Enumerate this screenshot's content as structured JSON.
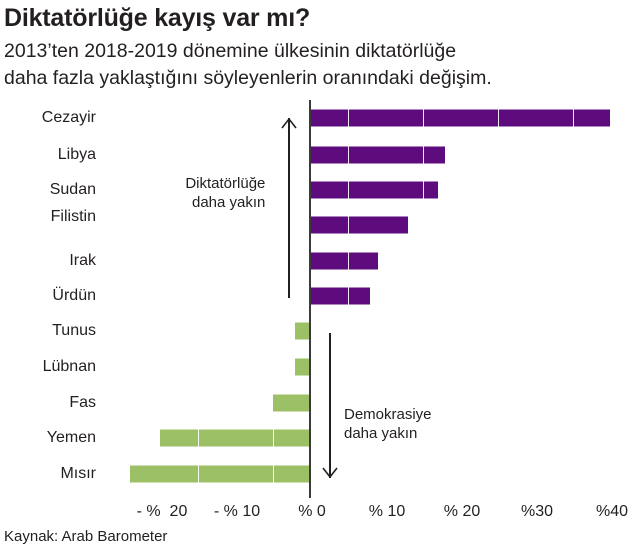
{
  "header": {
    "title": "Diktatörlüğe kayış var mı?",
    "subtitle_line1": "2013’ten 2018-2019 dönemine ülkesinin diktatörlüğe",
    "subtitle_line2": "daha fazla yaklaştığını söyleyenlerin oranındaki değişim."
  },
  "annotations": {
    "up_line1": "Diktatörlüğe",
    "up_line2": "daha yakın",
    "down_line1": "Demokrasiye",
    "down_line2": "daha yakın"
  },
  "footer": {
    "source": "Kaynak: Arab Barometer"
  },
  "colors": {
    "positive": "#5e0b7e",
    "negative": "#9cc066",
    "axis": "#3a3a3a",
    "text": "#231f20"
  },
  "chart_data": {
    "type": "bar",
    "orientation": "horizontal",
    "title": "Diktatörlüğe kayış var mı?",
    "subtitle": "2013’ten 2018-2019 dönemine ülkesinin diktatörlüğe daha fazla yaklaştığını söyleyenlerin oranındaki değişim.",
    "xlabel": "",
    "ylabel": "",
    "xlim": [
      -25,
      40
    ],
    "unit": "%",
    "grid": false,
    "legend": null,
    "categories": [
      "Cezayir",
      "Libya",
      "Sudan",
      "Filistin",
      "Irak",
      "Ürdün",
      "Tunus",
      "Lübnan",
      "Fas",
      "Yemen",
      "Mısır"
    ],
    "values": [
      40,
      18,
      17,
      13,
      9,
      8,
      -2,
      -2,
      -5,
      -20,
      -24
    ],
    "tick_labels": [
      "- %  20",
      "- % 10",
      "% 0",
      "% 10",
      "% 20",
      "%30",
      "%40"
    ],
    "tick_values": [
      -20,
      -10,
      0,
      10,
      20,
      30,
      40
    ],
    "annotations": [
      {
        "text": "Diktatörlüğe daha yakın",
        "direction": "up"
      },
      {
        "text": "Demokrasiye daha yakın",
        "direction": "down"
      }
    ],
    "source": "Kaynak: Arab Barometer"
  }
}
